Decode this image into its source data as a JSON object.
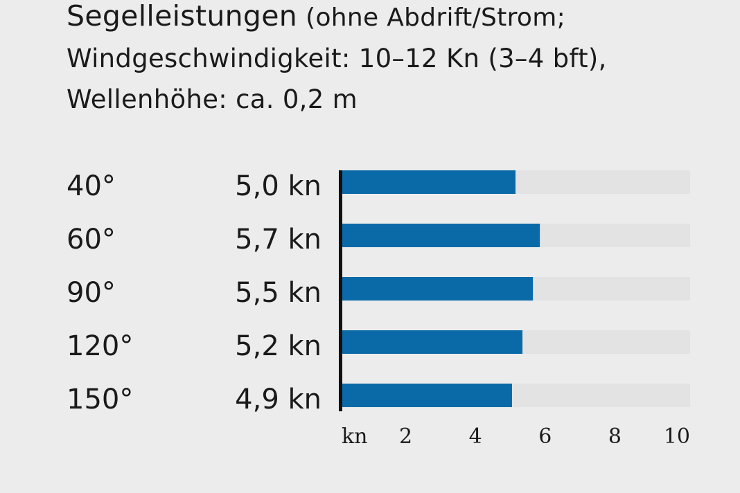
{
  "title": {
    "main": "Segelleistungen",
    "line1_rest": "(ohne Abdrift/Strom;",
    "line2": "Windgeschwindigkeit: 10–12 Kn (3–4 bft),",
    "line3": "Wellenhöhe: ca. 0,2 m"
  },
  "colors": {
    "bar": "#0a6aa8",
    "track": "#e3e3e3",
    "background": "#ececec",
    "axis": "#111111"
  },
  "chart_data": {
    "type": "bar",
    "orientation": "horizontal",
    "categories": [
      "40°",
      "60°",
      "90°",
      "120°",
      "150°"
    ],
    "values": [
      5.0,
      5.7,
      5.5,
      5.2,
      4.9
    ],
    "value_labels": [
      "5,0 kn",
      "5,7 kn",
      "5,5 kn",
      "5,2 kn",
      "4,9 kn"
    ],
    "xlim": [
      0,
      10
    ],
    "x_ticks": [
      2,
      4,
      6,
      8,
      10
    ],
    "x_tick_labels": [
      "2",
      "4",
      "6",
      "8",
      "10"
    ],
    "x_unit_label": "kn",
    "grid": false,
    "legend": "none"
  }
}
